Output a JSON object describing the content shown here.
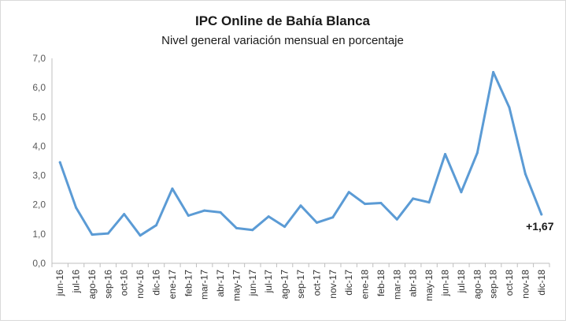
{
  "chart_data": {
    "type": "line",
    "title": "IPC Online de Bahía Blanca",
    "subtitle": "Nivel general variación mensual en porcentaje",
    "xlabel": "",
    "ylabel": "",
    "ylim": [
      0,
      7
    ],
    "yticks": [
      "0,0",
      "1,0",
      "2,0",
      "3,0",
      "4,0",
      "5,0",
      "6,0",
      "7,0"
    ],
    "grid": false,
    "categories": [
      "jun-16",
      "jul-16",
      "ago-16",
      "sep-16",
      "oct-16",
      "nov-16",
      "dic-16",
      "ene-17",
      "feb-17",
      "mar-17",
      "abr-17",
      "may-17",
      "jun-17",
      "jul-17",
      "ago-17",
      "sep-17",
      "oct-17",
      "nov-17",
      "dic-17",
      "ene-18",
      "feb-18",
      "mar-18",
      "abr-18",
      "may-18",
      "jun-18",
      "jul-18",
      "ago-18",
      "sep-18",
      "oct-18",
      "nov-18",
      "dic-18"
    ],
    "series": [
      {
        "name": "",
        "color": "#5b9bd5",
        "values": [
          3.45,
          1.9,
          0.98,
          1.02,
          1.68,
          0.95,
          1.3,
          2.55,
          1.63,
          1.8,
          1.74,
          1.2,
          1.14,
          1.6,
          1.25,
          1.97,
          1.39,
          1.57,
          2.43,
          2.03,
          2.06,
          1.5,
          2.21,
          2.08,
          3.73,
          2.43,
          3.77,
          6.53,
          5.32,
          3.05,
          1.67
        ]
      }
    ],
    "annotation": "+1,67"
  }
}
